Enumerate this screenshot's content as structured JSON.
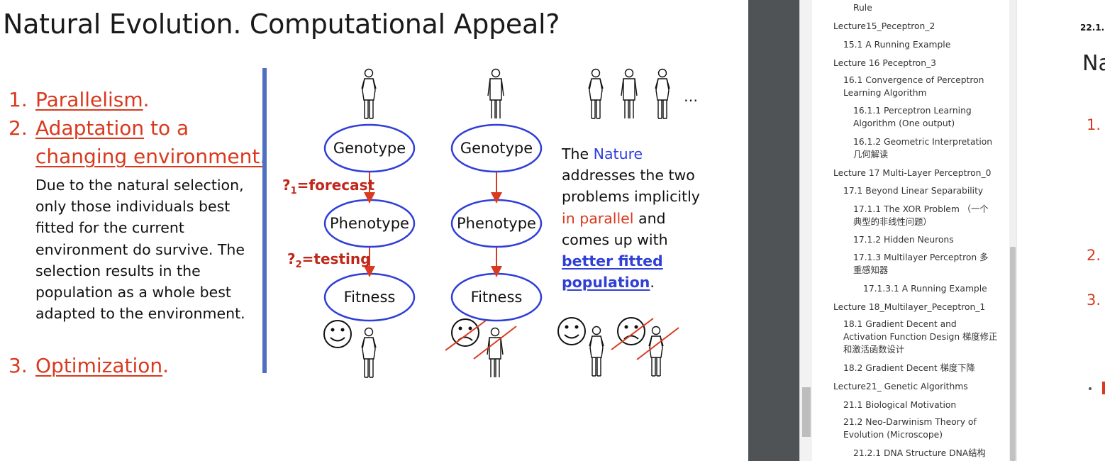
{
  "slide": {
    "title": "Natural Evolution. Computational Appeal?",
    "item1": {
      "num": "1.",
      "label": "Parallelism",
      "suffix": "."
    },
    "item2": {
      "num": "2.",
      "label": "Adaptation",
      "suffix": " to a",
      "cont": "changing environment."
    },
    "item3": {
      "num": "3.",
      "label": "Optimization",
      "suffix": "."
    },
    "explanation": "Due to the natural selection,\nonly those individuals best\nfitted for the current\nenvironment do survive. The\nselection results in the\npopulation as a whole best\nadapted to the environment.",
    "diagram": {
      "genotype": "Genotype",
      "phenotype": "Phenotype",
      "fitness": "Fitness",
      "q1_prefix": "?",
      "q1_sub": "1",
      "q1_label": "=forecast",
      "q2_prefix": "?",
      "q2_sub": "2",
      "q2_label": "=testing",
      "ellipsis": "…"
    },
    "nature": {
      "t1": "The ",
      "t2": "Nature",
      "t3": " addresses the two problems implicitly ",
      "t4": "in parallel",
      "t5": " and comes up with ",
      "t6": "better fitted population",
      "t7": "."
    }
  },
  "toc": {
    "items": [
      {
        "text": "Rule",
        "level": 2
      },
      {
        "text": "Lecture15_Peceptron_2",
        "level": 0
      },
      {
        "text": "15.1 A Running Example",
        "level": 1
      },
      {
        "text": "Lecture 16 Peceptron_3",
        "level": 0
      },
      {
        "text": "16.1 Convergence of Perceptron Learning Algorithm",
        "level": 1
      },
      {
        "text": "16.1.1 Perceptron Learning Algorithm (One output)",
        "level": 2
      },
      {
        "text": "16.1.2 Geometric Interpretation 几何解读",
        "level": 2
      },
      {
        "text": "Lecture 17 Multi-Layer Perceptron_0",
        "level": 0
      },
      {
        "text": "17.1 Beyond Linear Separability",
        "level": 1
      },
      {
        "text": "17.1.1 The XOR Problem （一个典型的非线性问题）",
        "level": 2
      },
      {
        "text": "17.1.2 Hidden Neurons",
        "level": 2
      },
      {
        "text": "17.1.3 Multilayer Perceptron 多重感知器",
        "level": 2
      },
      {
        "text": "17.1.3.1 A Running Example",
        "level": 3
      },
      {
        "text": "Lecture 18_Multilayer_Peceptron_1",
        "level": 0
      },
      {
        "text": "18.1 Gradient Decent and Activation Function Design 梯度修正和激活函数设计",
        "level": 1
      },
      {
        "text": "18.2 Gradient Decent 梯度下降",
        "level": 1
      },
      {
        "text": "Lecture21_ Genetic Algorithms",
        "level": 0
      },
      {
        "text": "21.1 Biological Motivation",
        "level": 1
      },
      {
        "text": "21.2 Neo-Darwinism Theory of Evolution (Microscope)",
        "level": 1
      },
      {
        "text": "21.2.1 DNA Structure DNA结构",
        "level": 2
      }
    ]
  },
  "preview": {
    "heading": "22.1.",
    "title": "Na",
    "num1": "1.",
    "num2": "2.",
    "num3": "3."
  },
  "colors": {
    "accent_red": "#d9391e",
    "accent_blue": "#2f3fd8",
    "divider": "#4f6fc0"
  }
}
